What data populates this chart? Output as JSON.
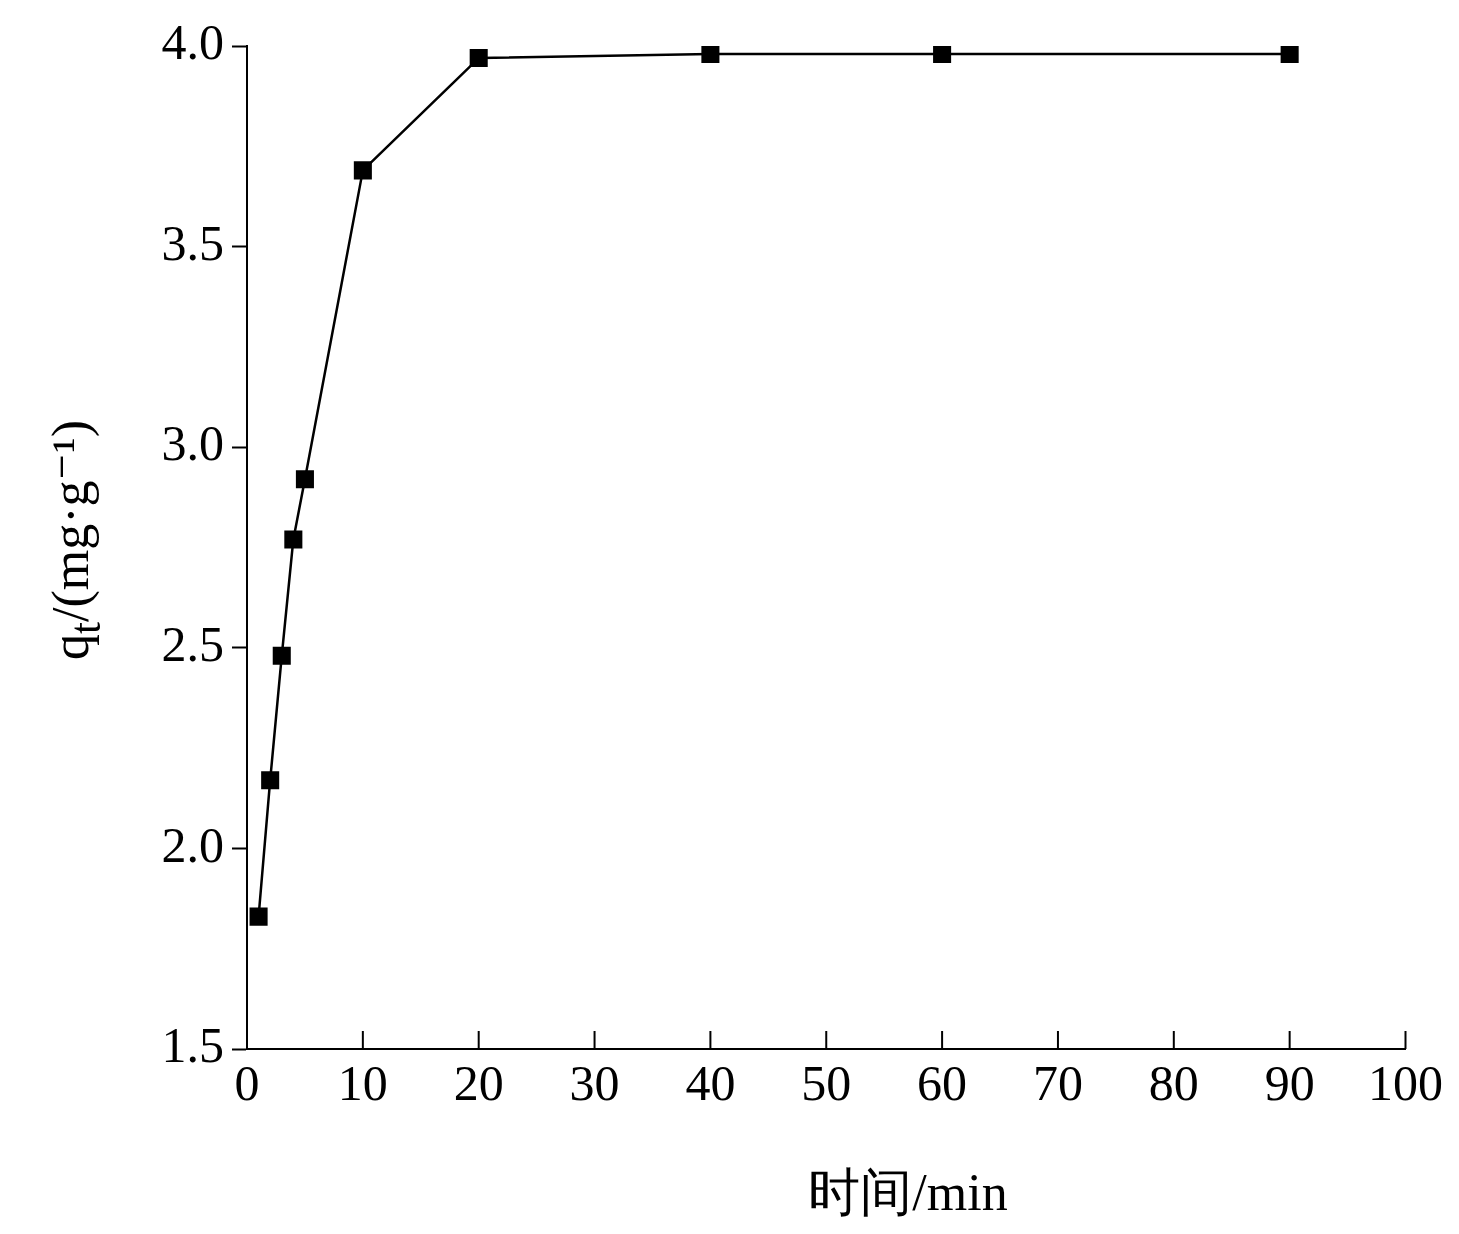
{
  "chart_data": {
    "type": "line",
    "xlabel": "时间/min",
    "ylabel": "q$_{t}$/(mg·g⁻¹)",
    "x": [
      1,
      2,
      3,
      4,
      5,
      10,
      20,
      40,
      60,
      90
    ],
    "series": [
      {
        "color": "#000000",
        "values": [
          1.83,
          2.17,
          2.48,
          2.77,
          2.92,
          3.69,
          3.97,
          3.98,
          3.98,
          3.98
        ]
      }
    ],
    "xlim": [
      0,
      100
    ],
    "xticks": [
      0,
      10,
      20,
      30,
      40,
      50,
      60,
      70,
      80,
      90,
      100
    ],
    "ylim": [
      1.5,
      4.0
    ],
    "yticks": [
      {
        "value": 1.5,
        "label": "1.5"
      },
      {
        "value": 2.0,
        "label": "2.0"
      },
      {
        "value": 2.5,
        "label": "2.5"
      },
      {
        "value": 3.0,
        "label": "3.0"
      },
      {
        "value": 3.5,
        "label": "3.5"
      },
      {
        "value": 4.0,
        "label": "4.0"
      }
    ],
    "marker": "square",
    "line_style": "solid",
    "grid": false,
    "legend": false
  }
}
